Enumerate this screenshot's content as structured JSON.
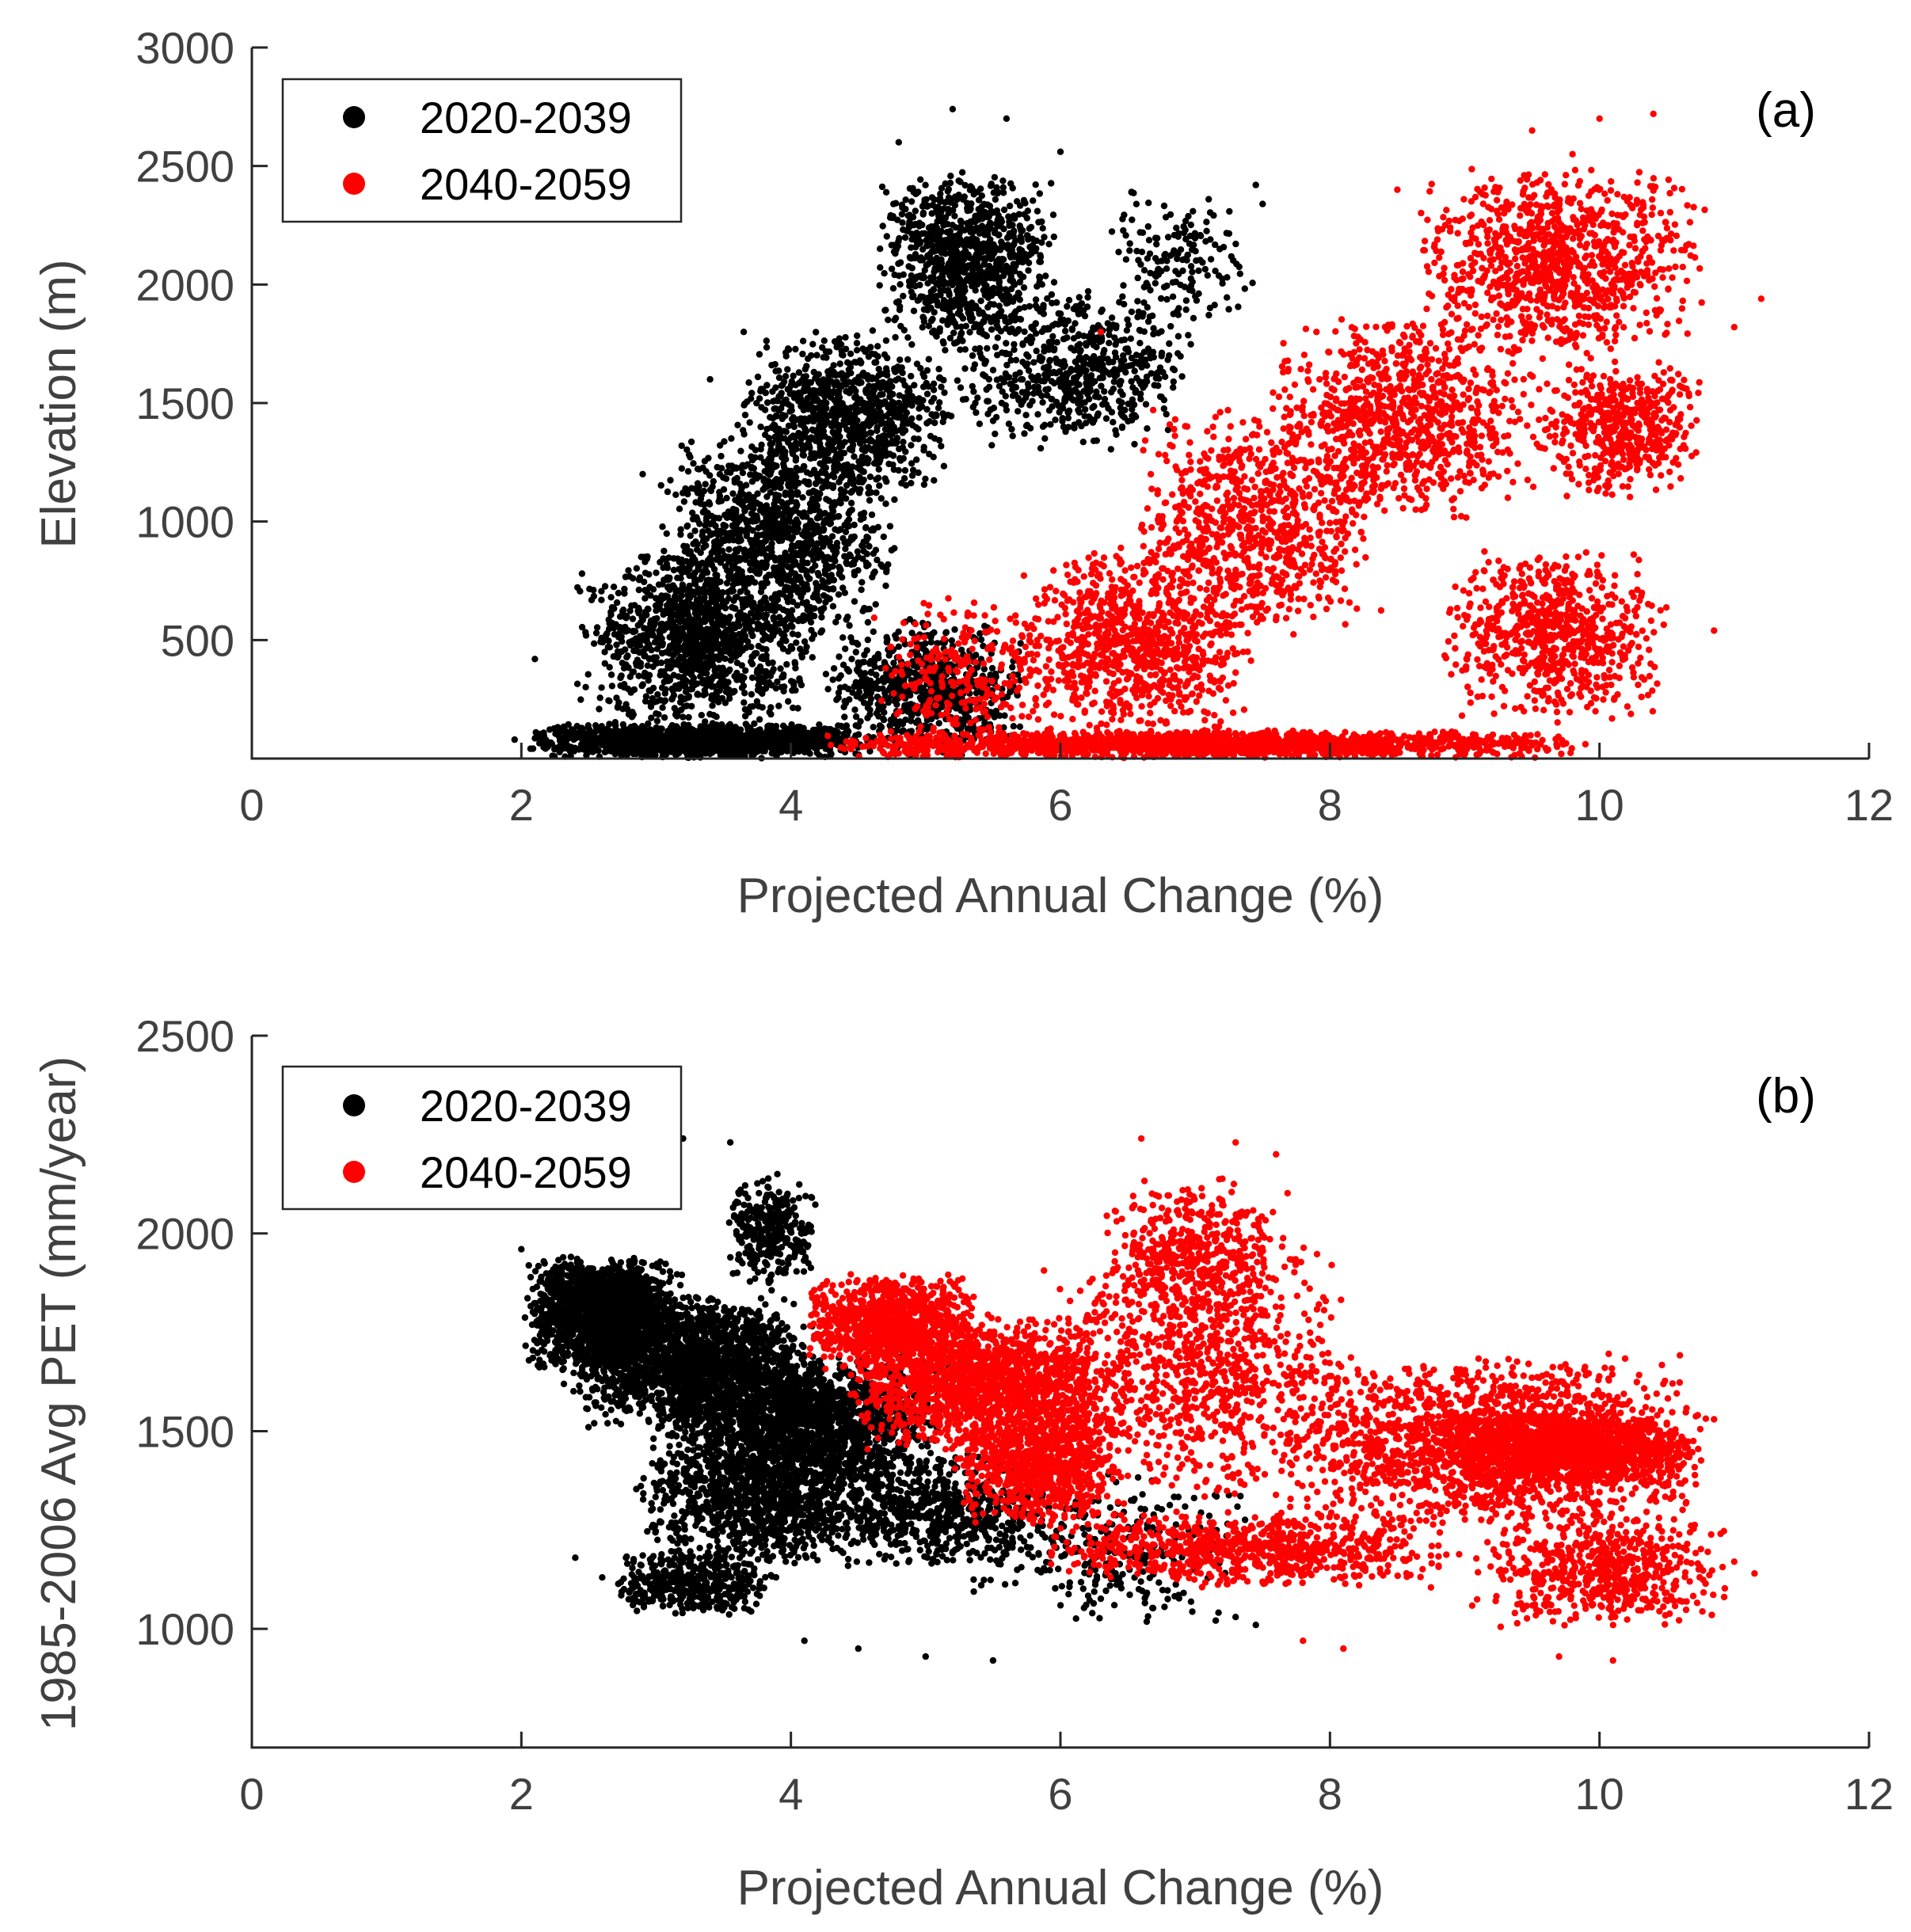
{
  "chart_data": [
    {
      "type": "scatter",
      "panel_label": "(a)",
      "xlabel": "Projected Annual Change (%)",
      "ylabel": "Elevation (m)",
      "xlim": [
        0,
        12
      ],
      "ylim": [
        0,
        3000
      ],
      "xticks": [
        0,
        2,
        4,
        6,
        8,
        10,
        12
      ],
      "yticks": [
        500,
        1000,
        1500,
        2000,
        2500,
        3000
      ],
      "xtick_labels": [
        "0",
        "2",
        "4",
        "6",
        "8",
        "10",
        "12"
      ],
      "ytick_labels": [
        "500",
        "1000",
        "1500",
        "2000",
        "2500",
        "3000"
      ],
      "legend": {
        "location": "top-left",
        "entries": [
          "2020-2039",
          "2040-2059"
        ]
      },
      "series": [
        {
          "name": "2020-2039",
          "color": "#000000",
          "clusters": [
            {
              "x": [
                2.0,
                4.6
              ],
              "y": [
                0,
                150
              ],
              "count": 1400
            },
            {
              "x": [
                2.4,
                4.2
              ],
              "y": [
                100,
                900
              ],
              "count": 1200
            },
            {
              "x": [
                3.0,
                4.8
              ],
              "y": [
                500,
                1400
              ],
              "count": 1100
            },
            {
              "x": [
                3.6,
                5.2
              ],
              "y": [
                1100,
                1800
              ],
              "count": 900
            },
            {
              "x": [
                4.6,
                6.0
              ],
              "y": [
                1700,
                2500
              ],
              "count": 900
            },
            {
              "x": [
                5.2,
                7.0
              ],
              "y": [
                1300,
                2000
              ],
              "count": 600
            },
            {
              "x": [
                6.2,
                7.5
              ],
              "y": [
                1800,
                2400
              ],
              "count": 150
            },
            {
              "x": [
                4.2,
                5.8
              ],
              "y": [
                0,
                600
              ],
              "count": 700
            }
          ],
          "points": [
            [
              1.95,
              80
            ],
            [
              2.1,
              420
            ],
            [
              2.45,
              780
            ],
            [
              2.9,
              1200
            ],
            [
              3.4,
              1600
            ],
            [
              3.65,
              1800
            ],
            [
              4.8,
              2600
            ],
            [
              5.2,
              2740
            ],
            [
              5.6,
              2700
            ],
            [
              6.0,
              2560
            ],
            [
              7.1,
              2360
            ],
            [
              7.45,
              2420
            ],
            [
              7.5,
              2340
            ],
            [
              6.8,
              2200
            ],
            [
              7.0,
              1950
            ]
          ]
        },
        {
          "name": "2040-2059",
          "color": "#ff0000",
          "clusters": [
            {
              "x": [
                4.2,
                10.0
              ],
              "y": [
                0,
                120
              ],
              "count": 1800
            },
            {
              "x": [
                5.6,
                7.5
              ],
              "y": [
                100,
                900
              ],
              "count": 900
            },
            {
              "x": [
                6.5,
                8.4
              ],
              "y": [
                500,
                1500
              ],
              "count": 800
            },
            {
              "x": [
                7.5,
                9.6
              ],
              "y": [
                1000,
                1900
              ],
              "count": 900
            },
            {
              "x": [
                8.6,
                10.8
              ],
              "y": [
                1700,
                2500
              ],
              "count": 1000
            },
            {
              "x": [
                9.5,
                10.8
              ],
              "y": [
                1100,
                1700
              ],
              "count": 500
            },
            {
              "x": [
                8.8,
                10.5
              ],
              "y": [
                150,
                900
              ],
              "count": 700
            },
            {
              "x": [
                4.6,
                6.0
              ],
              "y": [
                0,
                700
              ],
              "count": 250
            }
          ],
          "points": [
            [
              10.4,
              2720
            ],
            [
              10.0,
              2700
            ],
            [
              9.5,
              2650
            ],
            [
              11.2,
              1940
            ],
            [
              11.0,
              1820
            ],
            [
              10.85,
              540
            ],
            [
              6.3,
              1800
            ],
            [
              7.9,
              1800
            ],
            [
              8.5,
              2400
            ],
            [
              9.8,
              2550
            ]
          ]
        }
      ]
    },
    {
      "type": "scatter",
      "panel_label": "(b)",
      "xlabel": "Projected Annual Change (%)",
      "ylabel": "1985-2006 Avg PET (mm/year)",
      "xlim": [
        0,
        12
      ],
      "ylim": [
        700,
        2500
      ],
      "xticks": [
        0,
        2,
        4,
        6,
        8,
        10,
        12
      ],
      "yticks": [
        1000,
        1500,
        2000,
        2500
      ],
      "xtick_labels": [
        "0",
        "2",
        "4",
        "6",
        "8",
        "10",
        "12"
      ],
      "ytick_labels": [
        "1000",
        "1500",
        "2000",
        "2500"
      ],
      "legend": {
        "location": "top-left",
        "entries": [
          "2020-2039",
          "2040-2059"
        ]
      },
      "series": [
        {
          "name": "2020-2039",
          "color": "#000000",
          "clusters": [
            {
              "x": [
                2.0,
                3.2
              ],
              "y": [
                1650,
                1950
              ],
              "count": 1600
            },
            {
              "x": [
                2.3,
                4.2
              ],
              "y": [
                1500,
                1850
              ],
              "count": 1800
            },
            {
              "x": [
                3.0,
                5.2
              ],
              "y": [
                1350,
                1700
              ],
              "count": 1800
            },
            {
              "x": [
                2.8,
                4.8
              ],
              "y": [
                1150,
                1500
              ],
              "count": 1100
            },
            {
              "x": [
                2.6,
                3.9
              ],
              "y": [
                1030,
                1200
              ],
              "count": 450
            },
            {
              "x": [
                3.5,
                4.2
              ],
              "y": [
                1850,
                2150
              ],
              "count": 300
            },
            {
              "x": [
                4.2,
                6.0
              ],
              "y": [
                1150,
                1450
              ],
              "count": 600
            },
            {
              "x": [
                5.2,
                7.5
              ],
              "y": [
                1000,
                1400
              ],
              "count": 300
            }
          ],
          "points": [
            [
              2.0,
              1960
            ],
            [
              3.2,
              2240
            ],
            [
              3.55,
              2230
            ],
            [
              3.9,
              2150
            ],
            [
              2.4,
              1180
            ],
            [
              2.6,
              1130
            ],
            [
              4.1,
              970
            ],
            [
              4.5,
              950
            ],
            [
              5.0,
              930
            ],
            [
              5.5,
              920
            ],
            [
              7.3,
              1030
            ],
            [
              7.45,
              1010
            ],
            [
              6.4,
              1060
            ]
          ]
        },
        {
          "name": "2040-2059",
          "color": "#ff0000",
          "clusters": [
            {
              "x": [
                4.1,
                5.4
              ],
              "y": [
                1650,
                1900
              ],
              "count": 900
            },
            {
              "x": [
                4.4,
                6.4
              ],
              "y": [
                1450,
                1800
              ],
              "count": 1400
            },
            {
              "x": [
                5.2,
                6.5
              ],
              "y": [
                1250,
                1600
              ],
              "count": 900
            },
            {
              "x": [
                5.8,
                8.2
              ],
              "y": [
                1300,
                2000
              ],
              "count": 900
            },
            {
              "x": [
                6.3,
                7.7
              ],
              "y": [
                1750,
                2150
              ],
              "count": 450
            },
            {
              "x": [
                7.5,
                10.8
              ],
              "y": [
                1250,
                1700
              ],
              "count": 1700
            },
            {
              "x": [
                8.8,
                10.8
              ],
              "y": [
                1350,
                1550
              ],
              "count": 1200
            },
            {
              "x": [
                5.8,
                9.0
              ],
              "y": [
                1100,
                1300
              ],
              "count": 800
            },
            {
              "x": [
                9.0,
                11.0
              ],
              "y": [
                1000,
                1300
              ],
              "count": 600
            }
          ],
          "points": [
            [
              6.6,
              2240
            ],
            [
              7.3,
              2230
            ],
            [
              7.6,
              2200
            ],
            [
              11.15,
              1140
            ],
            [
              11.0,
              1170
            ],
            [
              10.85,
              1530
            ],
            [
              10.1,
              920
            ],
            [
              9.7,
              930
            ],
            [
              8.1,
              950
            ],
            [
              7.8,
              970
            ]
          ]
        }
      ]
    }
  ]
}
